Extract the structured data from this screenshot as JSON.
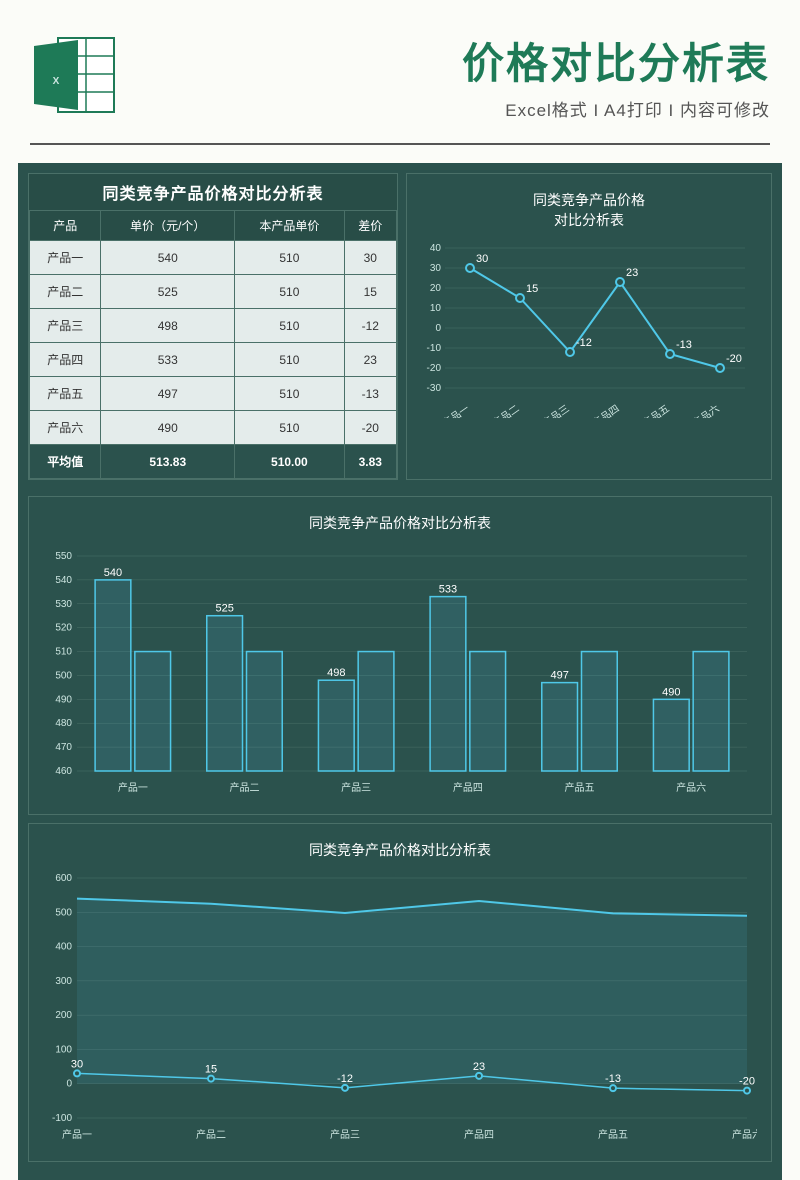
{
  "header": {
    "title": "价格对比分析表",
    "subtitle": "Excel格式 I A4打印 I 内容可修改"
  },
  "table": {
    "title": "同类竞争产品价格对比分析表",
    "columns": [
      "产品",
      "单价（元/个）",
      "本产品单价",
      "差价"
    ],
    "rows": [
      [
        "产品一",
        "540",
        "510",
        "30"
      ],
      [
        "产品二",
        "525",
        "510",
        "15"
      ],
      [
        "产品三",
        "498",
        "510",
        "-12"
      ],
      [
        "产品四",
        "533",
        "510",
        "23"
      ],
      [
        "产品五",
        "497",
        "510",
        "-13"
      ],
      [
        "产品六",
        "490",
        "510",
        "-20"
      ]
    ],
    "avg_row": [
      "平均值",
      "513.83",
      "510.00",
      "3.83"
    ]
  },
  "mini_chart": {
    "title1": "同类竞争产品价格",
    "title2": "对比分析表",
    "type": "line",
    "categories": [
      "产品一",
      "产品二",
      "产品三",
      "产品四",
      "产品五",
      "产品六"
    ],
    "values": [
      30,
      15,
      -12,
      23,
      -13,
      -20
    ],
    "ylim": [
      -30,
      40
    ],
    "ytick_step": 10,
    "line_color": "#4fc8e8",
    "dot_color": "#4fc8e8",
    "background": "#2b524d",
    "grid_color": "#4a7068"
  },
  "bar_chart": {
    "title": "同类竞争产品价格对比分析表",
    "type": "grouped-bar",
    "categories": [
      "产品一",
      "产品二",
      "产品三",
      "产品四",
      "产品五",
      "产品六"
    ],
    "series1": [
      540,
      525,
      498,
      533,
      497,
      490
    ],
    "series2": [
      510,
      510,
      510,
      510,
      510,
      510
    ],
    "ylim": [
      460,
      550
    ],
    "ytick_step": 10,
    "bar_fill": "rgba(80,180,220,0.15)",
    "bar_stroke": "#4fc8e8",
    "background": "#2b524d",
    "grid_color": "#4a7068",
    "labels_shown": [
      540,
      525,
      498,
      533,
      497,
      490
    ]
  },
  "area_chart": {
    "title": "同类竞争产品价格对比分析表",
    "type": "area",
    "categories": [
      "产品一",
      "产品二",
      "产品三",
      "产品四",
      "产品五",
      "产品六"
    ],
    "series1": [
      540,
      525,
      498,
      533,
      497,
      490
    ],
    "series2": [
      30,
      15,
      -12,
      23,
      -13,
      -20
    ],
    "ylim": [
      -100,
      600
    ],
    "ytick_step": 100,
    "line_color": "#4fc8e8",
    "area_fill": "rgba(80,180,220,0.12)",
    "background": "#2b524d",
    "grid_color": "#4a7068"
  },
  "colors": {
    "page_bg": "#fbfcf8",
    "dashboard_bg": "#2b524d",
    "header_title": "#1e7a57",
    "accent": "#4fc8e8"
  }
}
